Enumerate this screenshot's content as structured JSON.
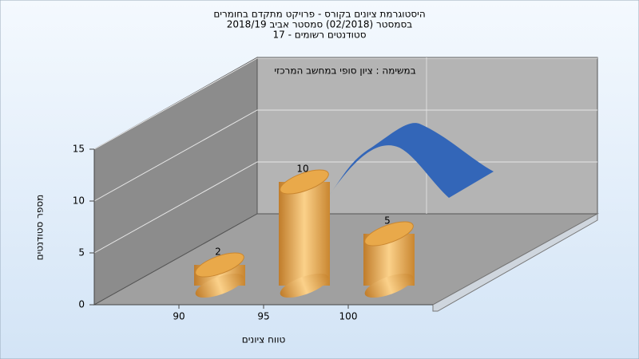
{
  "chart_data": {
    "type": "bar",
    "title": [
      "היסטוגרמת ציונים בקורס - פרויקט מתקדם בחומרים",
      "בסמסטר  (02/2018)  סמסטר אביב 2018/19",
      "סטודנטים רשומים - 17"
    ],
    "annotation": "במשימה : ציון סופי במחשב המרכזי",
    "x_label": "טווח ציונים",
    "y_label": "מספר סטודנטים",
    "categories": [
      "90",
      "95",
      "100"
    ],
    "values": [
      2,
      10,
      5
    ],
    "color": "#e8a640",
    "ylim": [
      0,
      15
    ],
    "yticks": [
      0,
      5,
      10,
      15
    ],
    "grid": true
  }
}
